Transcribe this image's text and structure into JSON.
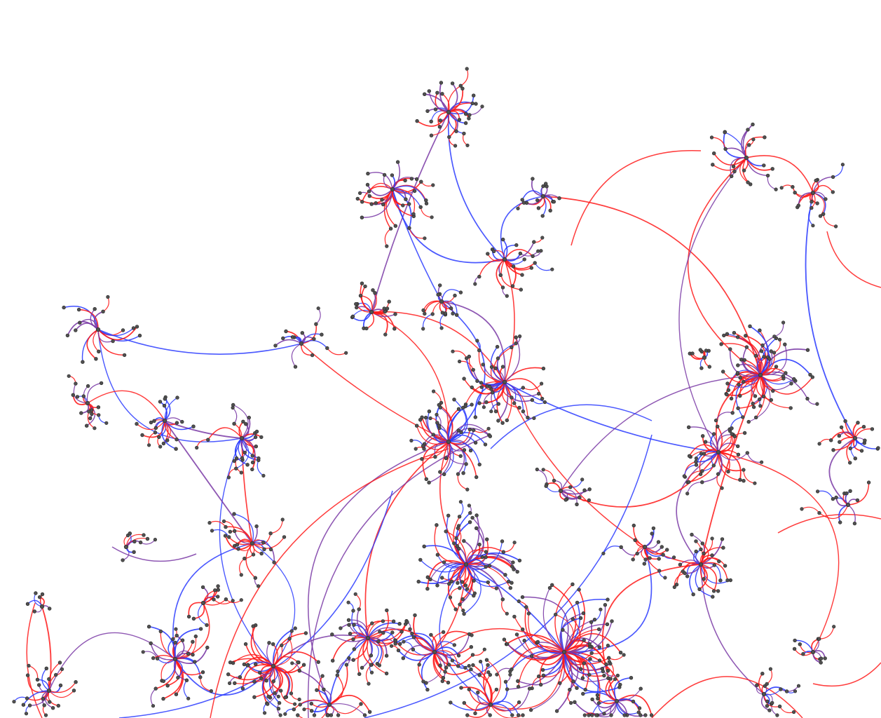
{
  "graph": {
    "background": "#ffffff",
    "edge_color_start": "#ff1a1a",
    "edge_color_end": "#2b3cff",
    "edge_color_mid": "#7a3aa6",
    "node_color": "#505050",
    "node_outline": "#2a2a2a"
  }
}
